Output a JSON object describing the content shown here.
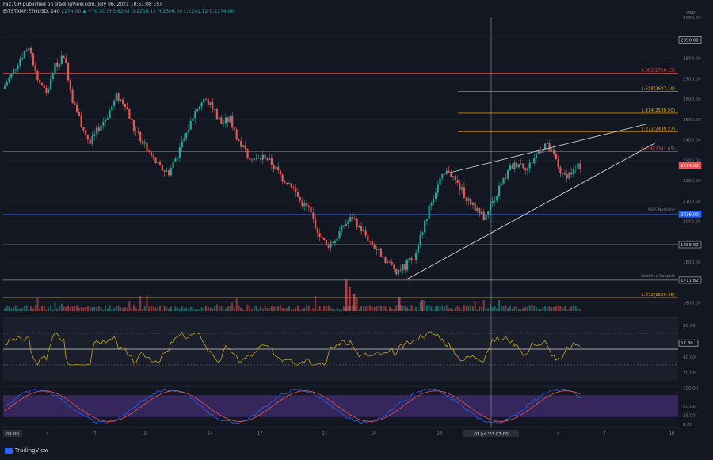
{
  "header": {
    "publisher": "Fax7GR published on TradingView.com, July 06, 2021 10:51:08 EST",
    "symbol": "BITSTAMP:ETHUSD, 240",
    "ohlc": "2274.00 ▲ +70.30 (+3.62%)",
    "ohlc_o": "O:2206.12",
    "ohlc_h": "H:2306.00",
    "ohlc_l": "L:2201.12",
    "ohlc_c": "C:2274.00"
  },
  "axis": {
    "currency": "USD",
    "price_ticks": [
      "3000.00",
      "2900.00",
      "2800.00",
      "2700.00",
      "2600.00",
      "2500.00",
      "2400.00",
      "2300.00",
      "2200.00",
      "2100.00",
      "2000.00",
      "1900.00",
      "1800.00",
      "1700.00",
      "1600.00"
    ],
    "rsi_ticks": [
      "80.00",
      "60.00",
      "40.00",
      "20.00"
    ],
    "stoch_ticks": [
      "100.00",
      "50.00",
      "25.00",
      "0.00"
    ],
    "time_ticks": [
      "4",
      "7",
      "10",
      "14",
      "17",
      "21",
      "24",
      "28",
      "4",
      "7",
      "10"
    ],
    "time_left_label": "01:00",
    "time_cursor_label": "01 Jul '21 07:00"
  },
  "levels": [
    {
      "label": "2890.00",
      "color": "#d1d4dc",
      "style": "box"
    },
    {
      "label": "0.382(2726.13)",
      "color": "#ef5350",
      "style": "text"
    },
    {
      "label": "1.618(2637.18)",
      "color": "#f7a600",
      "style": "text"
    },
    {
      "label": "1.414(2530.50)",
      "color": "#f7a600",
      "style": "text"
    },
    {
      "label": "1.272(2439.27)",
      "color": "#f7a600",
      "style": "text"
    },
    {
      "label": "0.236(2341.65)",
      "color": "#ef5350",
      "style": "text"
    },
    {
      "label": "2274.00",
      "color": "#ef5350",
      "style": "box"
    },
    {
      "label": "2036.00",
      "color": "#2962ff",
      "style": "box"
    },
    {
      "label": "1886.00",
      "color": "#b2b5be",
      "style": "box"
    },
    {
      "label": "1711.82",
      "color": "#b2b5be",
      "style": "box"
    },
    {
      "label": "1.272(1626.45)",
      "color": "#f7a600",
      "style": "text"
    }
  ],
  "annotations": {
    "hs_neckline": "H&S Neckline",
    "new_support": "Neckline Support",
    "rsi_value": "57.80"
  },
  "colors": {
    "up": "#26a69a",
    "down": "#ef5350",
    "rsi": "#c9a227",
    "stoch_k": "#2962ff",
    "stoch_d": "#ef5350",
    "stoch_band": "#3f2a6b"
  },
  "brand": "TradingView",
  "chart_data": {
    "type": "candlestick",
    "title": "",
    "symbol": "BITSTAMP:ETHUSD",
    "timeframe": "240",
    "y_range": [
      1560,
      3000
    ],
    "close_path_approx": [
      2650,
      2720,
      2800,
      2860,
      2700,
      2620,
      2760,
      2820,
      2600,
      2480,
      2380,
      2460,
      2520,
      2610,
      2580,
      2450,
      2390,
      2320,
      2260,
      2240,
      2330,
      2430,
      2540,
      2600,
      2560,
      2480,
      2500,
      2390,
      2330,
      2300,
      2320,
      2270,
      2210,
      2180,
      2100,
      2060,
      1960,
      1880,
      1910,
      1980,
      2020,
      1960,
      1900,
      1850,
      1800,
      1760,
      1780,
      1830,
      1960,
      2100,
      2200,
      2250,
      2180,
      2120,
      2060,
      2020,
      2100,
      2180,
      2260,
      2290,
      2260,
      2330,
      2380,
      2320,
      2220,
      2240,
      2274
    ],
    "last_close": 2274.0,
    "rsi_value": 57.8
  }
}
